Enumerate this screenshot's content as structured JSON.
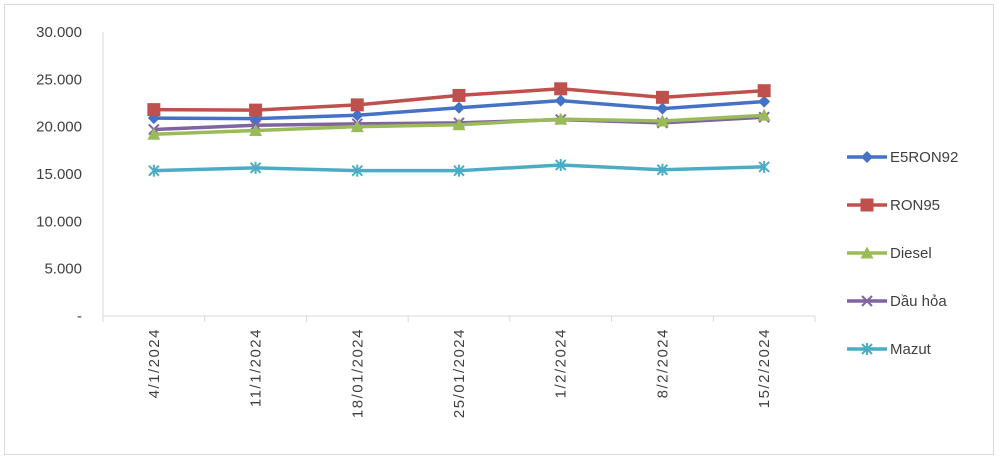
{
  "chart_data": {
    "type": "line",
    "categories": [
      "4/1/2024",
      "11/1/2024",
      "18/01/2024",
      "25/01/2024",
      "1/2/2024",
      "8/2/2024",
      "15/2/2024"
    ],
    "ylim": [
      0,
      30000
    ],
    "yticks": [
      0,
      5000,
      10000,
      15000,
      20000,
      25000,
      30000
    ],
    "ytick_labels": [
      "-",
      "5.000",
      "10.000",
      "15.000",
      "20.000",
      "25.000",
      "30.000"
    ],
    "grid": false,
    "legend_position": "right",
    "series": [
      {
        "name": "E5RON92",
        "color": "#4472C4",
        "marker": "diamond",
        "values": [
          20900,
          20850,
          21200,
          22000,
          22750,
          21900,
          22650
        ]
      },
      {
        "name": "RON95",
        "color": "#C0504D",
        "marker": "square",
        "values": [
          21800,
          21750,
          22300,
          23300,
          24000,
          23100,
          23800
        ]
      },
      {
        "name": "Diesel",
        "color": "#9BBB59",
        "marker": "triangle",
        "values": [
          19200,
          19600,
          20000,
          20200,
          20800,
          20600,
          21200
        ]
      },
      {
        "name": "Dầu hỏa",
        "color": "#8064A2",
        "marker": "x",
        "values": [
          19700,
          20150,
          20300,
          20400,
          20750,
          20400,
          21000
        ]
      },
      {
        "name": "Mazut",
        "color": "#4BACC6",
        "marker": "star",
        "values": [
          15350,
          15650,
          15350,
          15350,
          15950,
          15450,
          15750
        ]
      }
    ]
  }
}
